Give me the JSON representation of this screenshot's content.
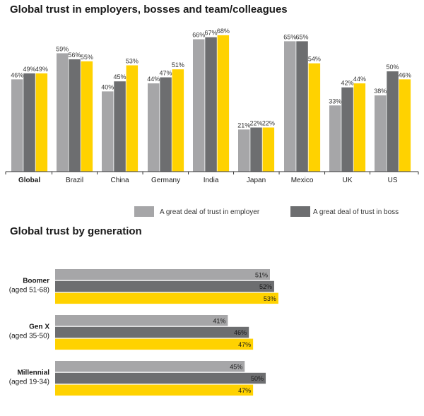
{
  "titles": {
    "chart1": "Global trust in employers, bosses and team/colleagues",
    "chart2": "Global trust by generation"
  },
  "colors": {
    "employer": "#a6a6a8",
    "boss": "#6d6e70",
    "team": "#ffd200",
    "axis": "#333333"
  },
  "legend": [
    {
      "label": "A great deal of trust in employer",
      "color_key": "employer"
    },
    {
      "label": "A great deal of trust in boss",
      "color_key": "boss"
    }
  ],
  "chart_data": [
    {
      "type": "bar",
      "title": "Global trust in employers, bosses and team/colleagues",
      "categories": [
        "Global",
        "Brazil",
        "China",
        "Germany",
        "India",
        "Japan",
        "Mexico",
        "UK",
        "US"
      ],
      "bold_categories": [
        "Global"
      ],
      "series": [
        {
          "name": "A great deal of trust in employer",
          "color_key": "employer",
          "values": [
            46,
            59,
            40,
            44,
            66,
            21,
            65,
            33,
            38
          ]
        },
        {
          "name": "A great deal of trust in boss",
          "color_key": "boss",
          "values": [
            49,
            56,
            45,
            47,
            67,
            22,
            65,
            42,
            50
          ]
        },
        {
          "color_key": "team",
          "values": [
            49,
            55,
            53,
            51,
            68,
            22,
            54,
            44,
            46
          ]
        }
      ],
      "value_suffix": "%",
      "ylim": [
        0,
        75
      ],
      "grid": false,
      "legend_position": "bottom-right"
    },
    {
      "type": "bar",
      "orientation": "horizontal",
      "title": "Global trust by generation",
      "groups": [
        {
          "name": "Boomer",
          "subtitle": "(aged 51-68)",
          "values": [
            51,
            52,
            53
          ]
        },
        {
          "name": "Gen X",
          "subtitle": "(aged 35-50)",
          "values": [
            41,
            46,
            47
          ]
        },
        {
          "name": "Millennial",
          "subtitle": "(aged 19-34)",
          "values": [
            45,
            50,
            47
          ]
        }
      ],
      "series_color_keys": [
        "employer",
        "boss",
        "team"
      ],
      "value_suffix": "%",
      "xlim": [
        0,
        60
      ],
      "grid": false
    }
  ]
}
